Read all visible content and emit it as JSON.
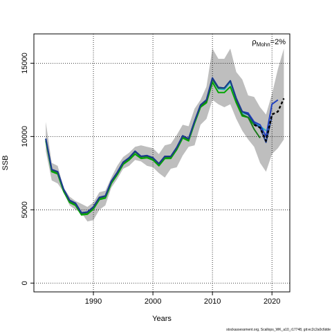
{
  "chart_data": {
    "type": "line",
    "xlabel": "Years",
    "ylabel": "SSB",
    "xlim": [
      1980,
      2023
    ],
    "ylim": [
      -600,
      17000
    ],
    "x_ticks": [
      1990,
      2000,
      2010,
      2020
    ],
    "x_tick_labels": [
      "1990",
      "2000",
      "2010",
      "2020"
    ],
    "y_ticks": [
      0,
      5000,
      10000,
      15000
    ],
    "y_tick_labels": [
      "0",
      "5000",
      "10000",
      "15000"
    ],
    "grid": true,
    "annotation": {
      "text": "=2%",
      "rho": "ρ",
      "sub": "Mohn",
      "placement": "top-right"
    },
    "footer": "stockassessment.org, Scallops_WK_a10_r17748, git:ec2c2a0c6dde",
    "colors": {
      "band": "#bebebe",
      "series": [
        "#00a600",
        "#2ab7c9",
        "#1f3fbf",
        "#1a7a1a",
        "#1c3b8c",
        "#000000"
      ]
    },
    "band": {
      "x": [
        1982,
        1983,
        1984,
        1985,
        1986,
        1987,
        1988,
        1989,
        1990,
        1991,
        1992,
        1993,
        1994,
        1995,
        1996,
        1997,
        1998,
        1999,
        2000,
        2001,
        2002,
        2003,
        2004,
        2005,
        2006,
        2007,
        2008,
        2009,
        2010,
        2011,
        2012,
        2013,
        2014,
        2015,
        2016,
        2017,
        2018,
        2019,
        2020,
        2021,
        2022
      ],
      "upper": [
        11000,
        8200,
        8000,
        6500,
        5900,
        5600,
        5400,
        5200,
        5500,
        6200,
        6300,
        7200,
        8000,
        8600,
        8900,
        9300,
        9400,
        9300,
        9200,
        8800,
        9400,
        9500,
        10100,
        10800,
        10700,
        11900,
        12500,
        13400,
        16000,
        15300,
        15300,
        16000,
        14400,
        13900,
        12800,
        12700,
        12000,
        11500,
        12900,
        14600,
        16000
      ],
      "lower": [
        9000,
        7000,
        6800,
        6200,
        5300,
        5000,
        4800,
        4200,
        4300,
        5000,
        5300,
        6500,
        7100,
        7800,
        8000,
        8400,
        8300,
        8000,
        7900,
        7500,
        7200,
        7800,
        7900,
        8700,
        9300,
        9400,
        10800,
        11200,
        12500,
        12200,
        12000,
        12200,
        11200,
        10400,
        9800,
        9300,
        8200,
        7600,
        8800,
        9200,
        9800
      ]
    },
    "series": [
      {
        "x": [
          1982,
          1983,
          1984,
          1985,
          1986,
          1987,
          1988,
          1989,
          1990,
          1991,
          1992,
          1993,
          1994,
          1995,
          1996,
          1997,
          1998,
          1999,
          2000,
          2001,
          2002,
          2003,
          2004,
          2005,
          2006,
          2007,
          2008,
          2009,
          2010,
          2011,
          2012,
          2013,
          2014,
          2015,
          2016,
          2017
        ],
        "values": [
          9700,
          7600,
          7450,
          6250,
          5500,
          5300,
          4650,
          4700,
          5050,
          5700,
          5800,
          6800,
          7400,
          8100,
          8400,
          8800,
          8500,
          8550,
          8400,
          8000,
          8500,
          8500,
          9100,
          9900,
          9700,
          10900,
          12000,
          12300,
          13700,
          13000,
          13000,
          13400,
          12300,
          11400,
          11300,
          10800
        ]
      },
      {
        "x": [
          1982,
          1983,
          1984,
          1985,
          1986,
          1987,
          1988,
          1989,
          1990,
          1991,
          1992,
          1993,
          1994,
          1995,
          1996,
          1997,
          1998,
          1999,
          2000,
          2001,
          2002,
          2003,
          2004,
          2005,
          2006,
          2007,
          2008,
          2009,
          2010,
          2011,
          2012,
          2013,
          2014,
          2015,
          2016,
          2017,
          2018,
          2019
        ],
        "values": [
          9800,
          7700,
          7550,
          6350,
          5600,
          5400,
          4750,
          4800,
          5150,
          5800,
          5900,
          6900,
          7500,
          8200,
          8500,
          8950,
          8600,
          8650,
          8500,
          8100,
          8600,
          8600,
          9200,
          10000,
          9800,
          11000,
          12100,
          12450,
          13900,
          13250,
          13200,
          13700,
          12500,
          11600,
          11500,
          10900,
          10700,
          10400
        ]
      },
      {
        "x": [
          1982,
          1983,
          1984,
          1985,
          1986,
          1987,
          1988,
          1989,
          1990,
          1991,
          1992,
          1993,
          1994,
          1995,
          1996,
          1997,
          1998,
          1999,
          2000,
          2001,
          2002,
          2003,
          2004,
          2005,
          2006,
          2007,
          2008,
          2009,
          2010,
          2011,
          2012,
          2013,
          2014,
          2015,
          2016,
          2017,
          2018,
          2019,
          2020,
          2021
        ],
        "values": [
          9850,
          7750,
          7600,
          6400,
          5650,
          5450,
          4800,
          4850,
          5200,
          5850,
          5950,
          6950,
          7550,
          8250,
          8550,
          9000,
          8650,
          8700,
          8550,
          8150,
          8650,
          8650,
          9250,
          10050,
          9850,
          11050,
          12150,
          12500,
          14000,
          13350,
          13300,
          13800,
          12600,
          11700,
          11600,
          11000,
          10800,
          10000,
          12200,
          12500
        ]
      },
      {
        "x": [
          1982,
          1983,
          1984,
          1985,
          1986,
          1987,
          1988,
          1989,
          1990,
          1991,
          1992,
          1993,
          1994,
          1995,
          1996,
          1997,
          1998,
          1999,
          2000,
          2001,
          2002,
          2003,
          2004,
          2005,
          2006,
          2007,
          2008,
          2009,
          2010,
          2011,
          2012,
          2013,
          2014,
          2015,
          2016,
          2017,
          2018
        ],
        "values": [
          9800,
          7700,
          7550,
          6350,
          5600,
          5400,
          4750,
          4800,
          5150,
          5800,
          5900,
          6900,
          7500,
          8200,
          8500,
          8950,
          8600,
          8650,
          8500,
          8100,
          8600,
          8600,
          9200,
          10000,
          9800,
          11000,
          12100,
          12400,
          13900,
          13300,
          13300,
          13800,
          12500,
          11500,
          11300,
          10500,
          9900
        ]
      },
      {
        "x": [
          1982,
          1983,
          1984,
          1985,
          1986,
          1987,
          1988,
          1989,
          1990,
          1991,
          1992,
          1993,
          1994,
          1995,
          1996,
          1997,
          1998,
          1999,
          2000,
          2001,
          2002,
          2003,
          2004,
          2005,
          2006,
          2007,
          2008,
          2009,
          2010,
          2011,
          2012,
          2013,
          2014,
          2015,
          2016,
          2017,
          2018,
          2019,
          2020
        ],
        "values": [
          9850,
          7750,
          7600,
          6400,
          5650,
          5450,
          4800,
          4850,
          5200,
          5850,
          5950,
          6950,
          7550,
          8250,
          8550,
          9000,
          8650,
          8700,
          8550,
          8150,
          8650,
          8650,
          9250,
          10050,
          9850,
          11050,
          12150,
          12500,
          14000,
          13350,
          13300,
          13800,
          12600,
          11700,
          11500,
          10900,
          10600,
          9600,
          11400
        ]
      },
      {
        "x": [
          2017,
          2018,
          2019,
          2020,
          2021,
          2022
        ],
        "values": [
          10800,
          10600,
          9700,
          11500,
          11700,
          12600
        ],
        "dashed": true
      }
    ]
  }
}
